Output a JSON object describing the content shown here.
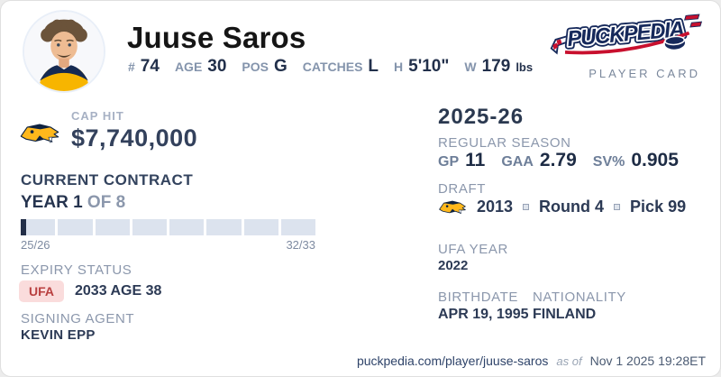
{
  "header": {
    "name": "Juuse Saros",
    "stats": [
      {
        "label": "#",
        "value": "74"
      },
      {
        "label": "AGE",
        "value": "30"
      },
      {
        "label": "POS",
        "value": "G"
      },
      {
        "label": "CATCHES",
        "value": "L"
      },
      {
        "label": "H",
        "value": "5'10\""
      },
      {
        "label": "W",
        "value": "179",
        "unit": "lbs"
      }
    ],
    "brand": {
      "wordmark": "PUCKPEDIA",
      "subtitle": "PLAYER CARD"
    }
  },
  "cap_hit": {
    "label": "CAP HIT",
    "value": "$7,740,000"
  },
  "contract": {
    "title": "CURRENT CONTRACT",
    "year_label": "YEAR 1",
    "of_label": "OF 8",
    "current_year": 1,
    "total_years": 8,
    "start_label": "25/26",
    "end_label": "32/33",
    "expiry_label": "EXPIRY STATUS",
    "expiry_badge": "UFA",
    "expiry_detail": "2033 AGE 38",
    "agent_label": "SIGNING AGENT",
    "agent_value": "KEVIN EPP"
  },
  "season": {
    "title": "2025-26",
    "section_label": "REGULAR SEASON",
    "stats": [
      {
        "label": "GP",
        "value": "11"
      },
      {
        "label": "GAA",
        "value": "2.79"
      },
      {
        "label": "SV%",
        "value": "0.905"
      }
    ]
  },
  "draft": {
    "label": "DRAFT",
    "year": "2013",
    "round": "Round 4",
    "pick": "Pick 99"
  },
  "ufa_year": {
    "label": "UFA YEAR",
    "value": "2022"
  },
  "birthdate": {
    "label": "BIRTHDATE",
    "value": "APR 19, 1995"
  },
  "nationality": {
    "label": "NATIONALITY",
    "value": "FINLAND"
  },
  "footer": {
    "link": "puckpedia.com/player/juuse-saros",
    "as_of": "as of",
    "timestamp": "Nov 1 2025 19:28ET"
  },
  "icons": {
    "team_logo": "nashville-predators-logo",
    "brand_logo": "puckpedia-logo",
    "separator": "small-square"
  },
  "colors": {
    "team_gold": "#FFB81C",
    "team_navy": "#0E2240",
    "accent_navy": "#2c3a55",
    "label_gray": "#8b97ac",
    "badge_red_bg": "#fadcdc",
    "badge_red_text": "#b94040",
    "brand_red": "#c8102e"
  }
}
